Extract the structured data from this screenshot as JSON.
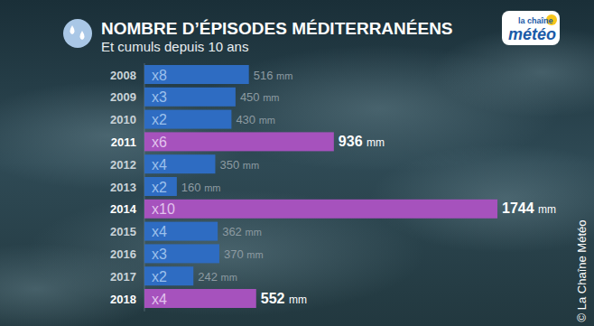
{
  "chart_data": {
    "type": "bar",
    "orientation": "horizontal",
    "title": "NOMBRE D’ÉPISODES MÉDITERRANÉENS",
    "subtitle": "Et cumuls depuis 10 ans",
    "annotations": [
      "la chaîne",
      "météo",
      "© La Chaîne Météo"
    ],
    "categories": [
      "2008",
      "2009",
      "2010",
      "2011",
      "2012",
      "2013",
      "2014",
      "2015",
      "2016",
      "2017",
      "2018"
    ],
    "episode_labels": [
      "x8",
      "x3",
      "x2",
      "x6",
      "x4",
      "x2",
      "x10",
      "x4",
      "x3",
      "x2",
      "x4"
    ],
    "values": [
      516,
      450,
      430,
      936,
      350,
      160,
      1744,
      362,
      370,
      242,
      552
    ],
    "value_labels": [
      "516 mm",
      "450 mm",
      "430 mm",
      "936 mm",
      "350 mm",
      "160 mm",
      "1744 mm",
      "362 mm",
      "370 mm",
      "242 mm",
      "552 mm"
    ],
    "colors": [
      "#2e6cc2",
      "#2e6cc2",
      "#2e6cc2",
      "#a652bd",
      "#2e6cc2",
      "#2e6cc2",
      "#a652bd",
      "#2e6cc2",
      "#2e6cc2",
      "#2e6cc2",
      "#a652bd"
    ],
    "xlim": [
      0,
      1744
    ],
    "tick_labels": false,
    "grid": false,
    "data_labels": true
  }
}
